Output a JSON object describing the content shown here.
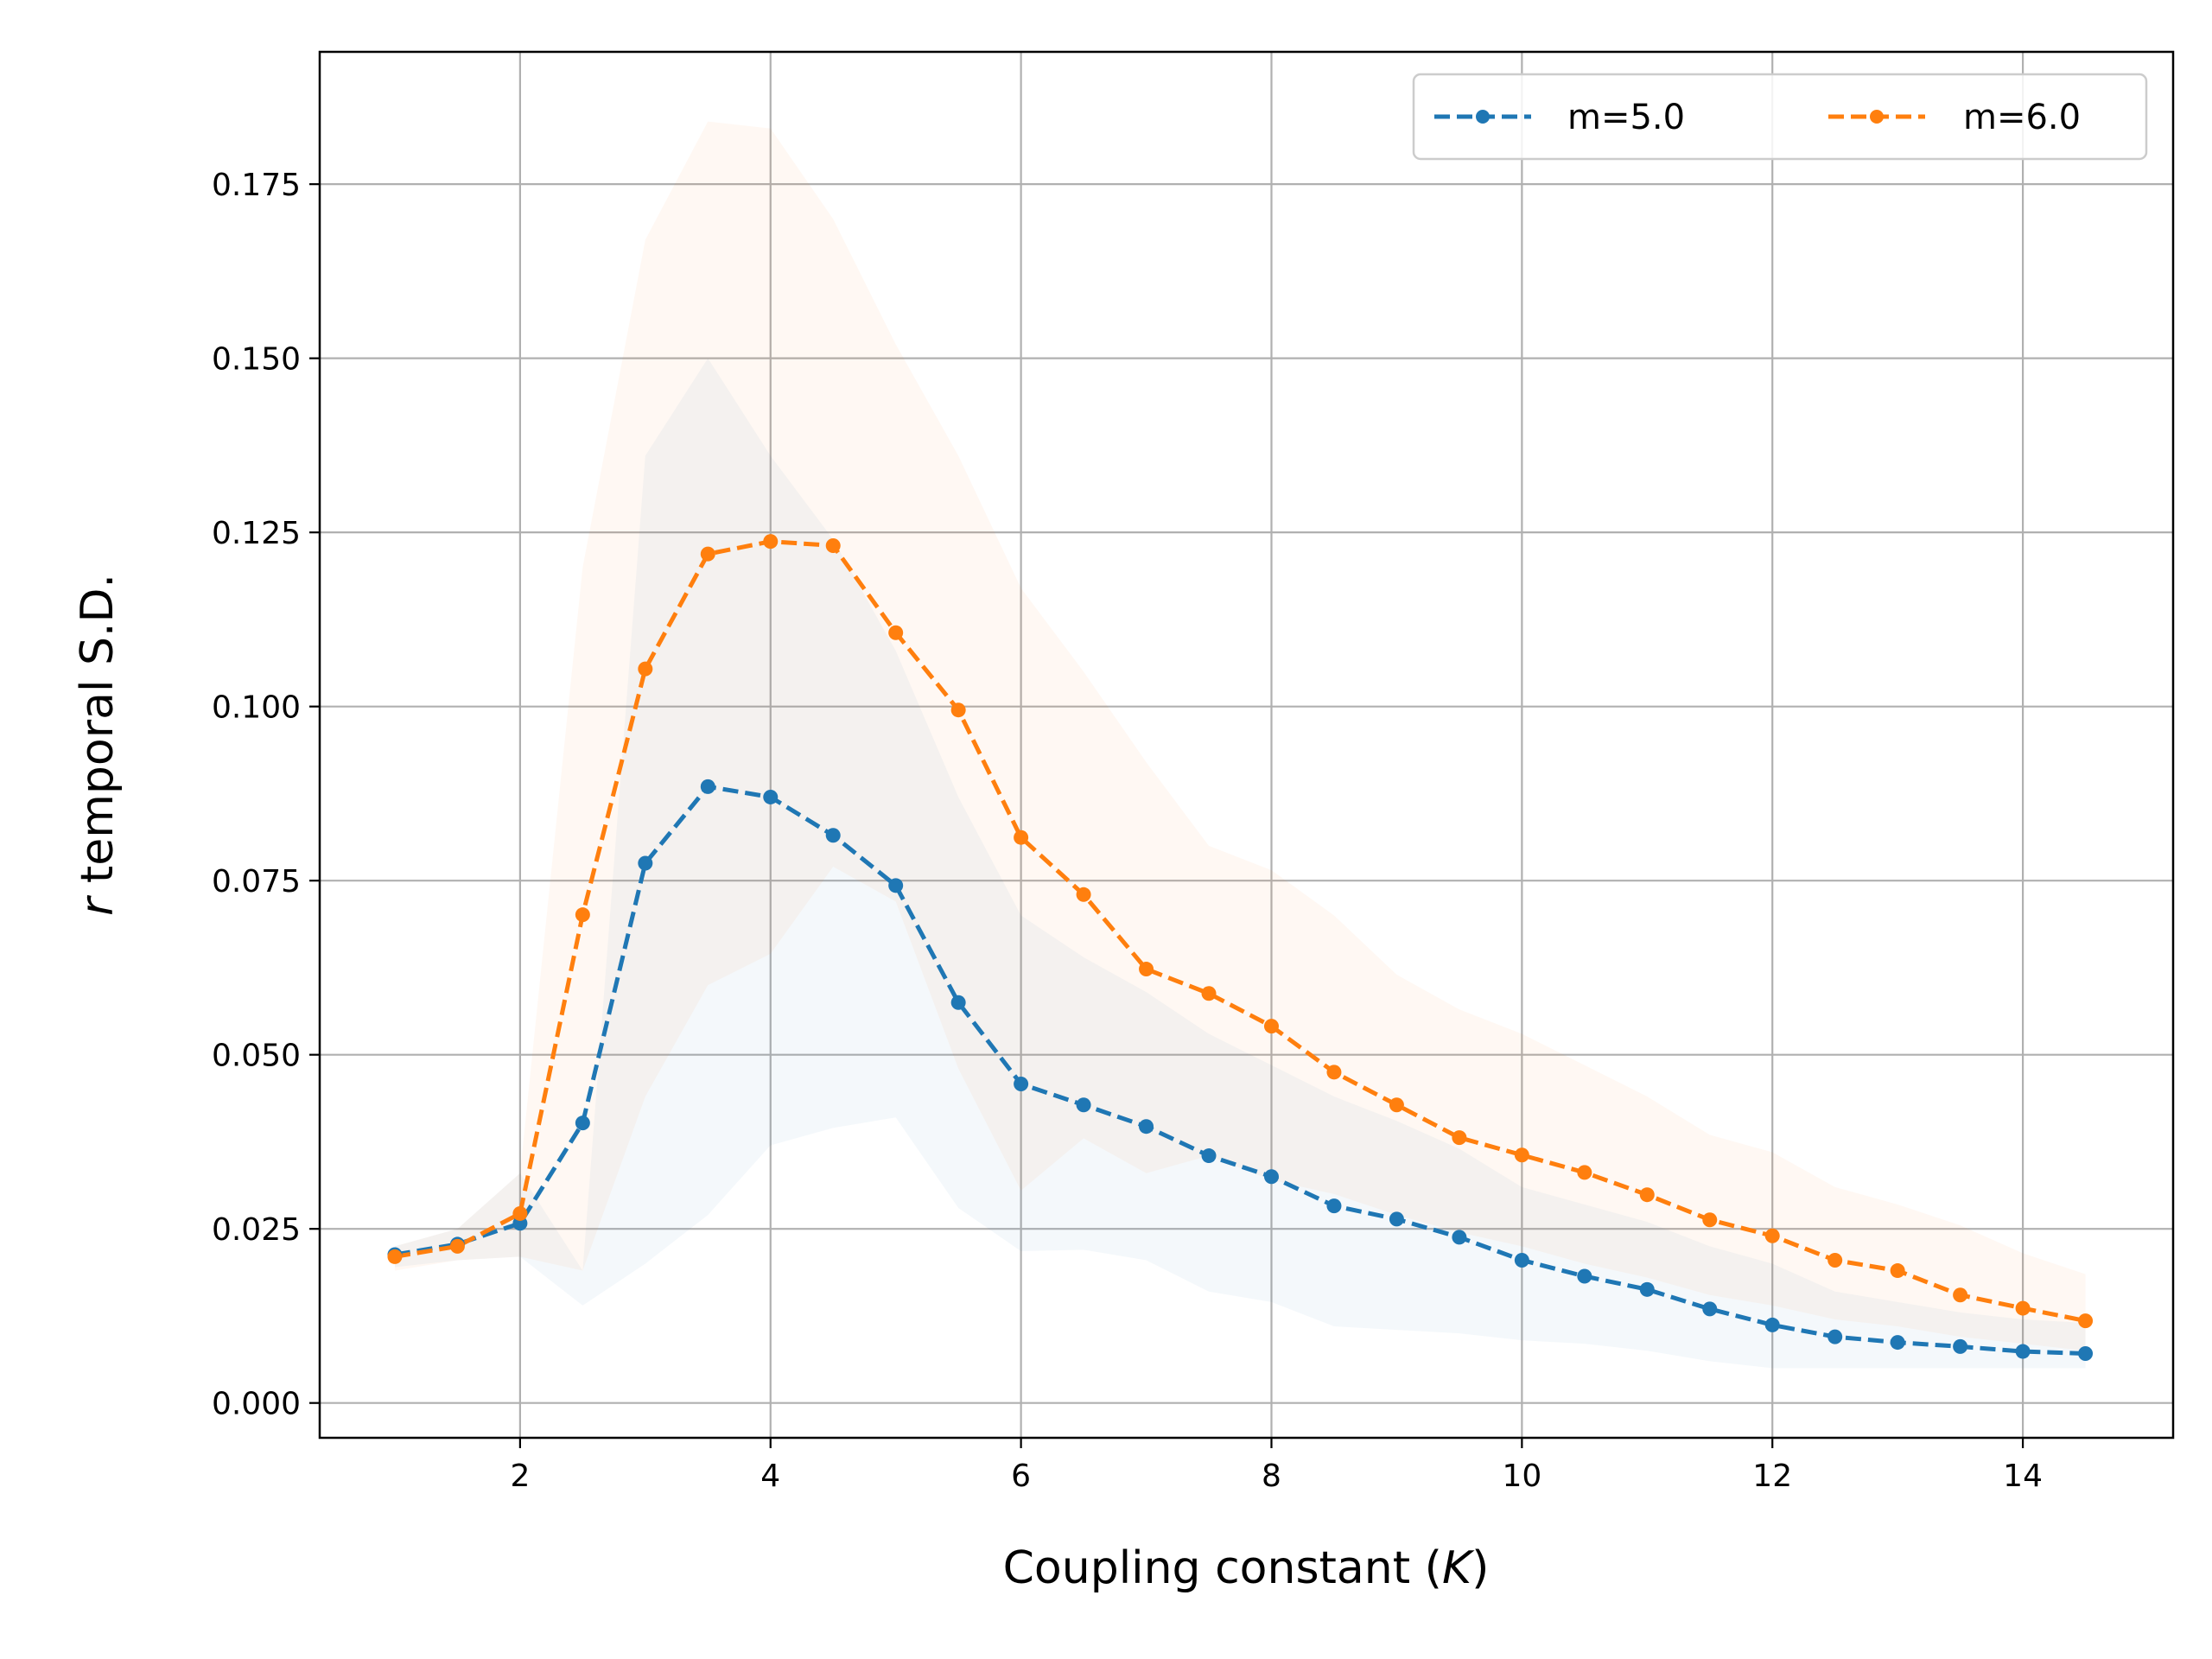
{
  "chart_data": {
    "type": "line",
    "xlabel": "Coupling constant (K)",
    "xlabel_parts": {
      "pre": "Coupling constant (",
      "italic": "K",
      "post": ")"
    },
    "ylabel": "r temporal S.D.",
    "ylabel_parts": {
      "italic": "r",
      "rest": " temporal S.D."
    },
    "xlim": [
      0.4,
      15.2
    ],
    "ylim": [
      -0.005,
      0.194
    ],
    "xticks": [
      2,
      4,
      6,
      8,
      10,
      12,
      14
    ],
    "xtick_labels": [
      "2",
      "4",
      "6",
      "8",
      "10",
      "12",
      "14"
    ],
    "yticks": [
      0.0,
      0.025,
      0.05,
      0.075,
      0.1,
      0.125,
      0.15,
      0.175
    ],
    "ytick_labels": [
      "0.000",
      "0.025",
      "0.050",
      "0.075",
      "0.100",
      "0.125",
      "0.150",
      "0.175"
    ],
    "grid": true,
    "legend_position": "top-right",
    "x": [
      1.0,
      1.5,
      2.0,
      2.5,
      3.0,
      3.5,
      4.0,
      4.5,
      5.0,
      5.5,
      6.0,
      6.5,
      7.0,
      7.5,
      8.0,
      8.5,
      9.0,
      9.5,
      10.0,
      10.5,
      11.0,
      11.5,
      12.0,
      12.5,
      13.0,
      13.5,
      14.0,
      14.5
    ],
    "series": [
      {
        "name": "m=5.0",
        "color": "#1f77b4",
        "values": [
          0.0213,
          0.0228,
          0.0258,
          0.0402,
          0.0775,
          0.0885,
          0.087,
          0.0815,
          0.0743,
          0.0575,
          0.0458,
          0.0428,
          0.0397,
          0.0355,
          0.0325,
          0.0283,
          0.0264,
          0.0238,
          0.0205,
          0.0182,
          0.0163,
          0.0135,
          0.0112,
          0.0095,
          0.0087,
          0.0081,
          0.0074,
          0.0071
        ],
        "band_low": [
          0.0195,
          0.0205,
          0.021,
          0.014,
          0.02,
          0.027,
          0.037,
          0.0395,
          0.041,
          0.028,
          0.0218,
          0.022,
          0.0205,
          0.016,
          0.0145,
          0.011,
          0.0105,
          0.01,
          0.009,
          0.0085,
          0.0075,
          0.006,
          0.005,
          0.005,
          0.005,
          0.005,
          0.005,
          0.005
        ],
        "band_high": [
          0.0225,
          0.025,
          0.033,
          0.019,
          0.136,
          0.15,
          0.136,
          0.124,
          0.108,
          0.087,
          0.07,
          0.064,
          0.059,
          0.053,
          0.0485,
          0.044,
          0.0405,
          0.0365,
          0.031,
          0.0285,
          0.026,
          0.0225,
          0.02,
          0.016,
          0.0145,
          0.013,
          0.012,
          0.0115
        ]
      },
      {
        "name": "m=6.0",
        "color": "#ff7f0e",
        "values": [
          0.021,
          0.0225,
          0.0272,
          0.0701,
          0.1054,
          0.1219,
          0.1237,
          0.1231,
          0.1106,
          0.0995,
          0.0812,
          0.073,
          0.0623,
          0.0588,
          0.0541,
          0.0475,
          0.0428,
          0.0381,
          0.0356,
          0.0331,
          0.0299,
          0.0263,
          0.024,
          0.0205,
          0.019,
          0.0155,
          0.0136,
          0.0118
        ],
        "band_low": [
          0.019,
          0.0205,
          0.021,
          0.019,
          0.044,
          0.06,
          0.0645,
          0.077,
          0.072,
          0.048,
          0.0305,
          0.038,
          0.033,
          0.0355,
          0.032,
          0.03,
          0.027,
          0.0245,
          0.0225,
          0.02,
          0.018,
          0.0155,
          0.014,
          0.012,
          0.011,
          0.0095,
          0.0085,
          0.0075
        ],
        "band_high": [
          0.0225,
          0.025,
          0.033,
          0.12,
          0.167,
          0.184,
          0.183,
          0.17,
          0.152,
          0.136,
          0.117,
          0.105,
          0.092,
          0.08,
          0.0765,
          0.07,
          0.0615,
          0.0565,
          0.053,
          0.0485,
          0.044,
          0.0385,
          0.036,
          0.031,
          0.0285,
          0.0255,
          0.0215,
          0.0185
        ]
      }
    ]
  }
}
